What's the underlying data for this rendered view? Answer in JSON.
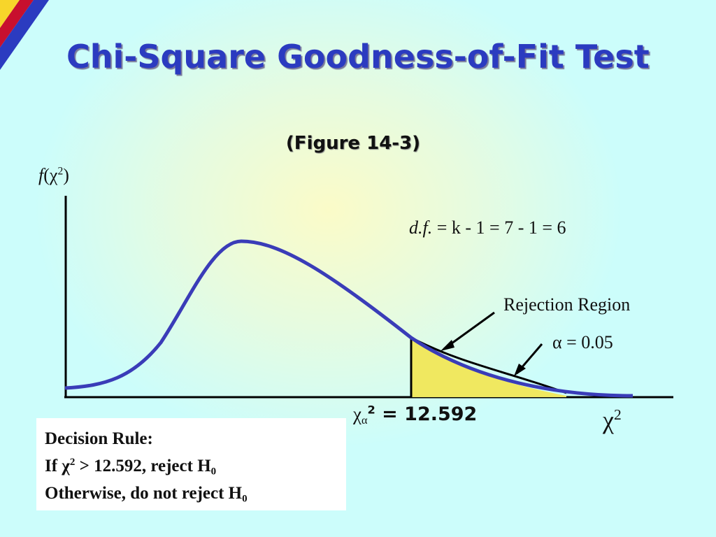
{
  "title": "Chi-Square Goodness-of-Fit Test",
  "subtitle": "(Figure 14-3)",
  "y_axis_label": [
    "f",
    "(χ",
    "2",
    ")"
  ],
  "df_label": [
    "d.f.",
    " = k - 1 = 7 - 1 = 6"
  ],
  "rejection_region": "Rejection Region",
  "alpha": "α = 0.05",
  "critical_value": [
    "χ",
    "α",
    "2",
    " = 12.592"
  ],
  "x_axis_label": [
    "χ",
    "2"
  ],
  "decision_rule": {
    "heading": "Decision Rule:",
    "line1": [
      "If χ",
      "2",
      " > 12.592, reject H",
      "0"
    ],
    "line2": [
      "Otherwise, do not reject H",
      "0"
    ]
  }
}
